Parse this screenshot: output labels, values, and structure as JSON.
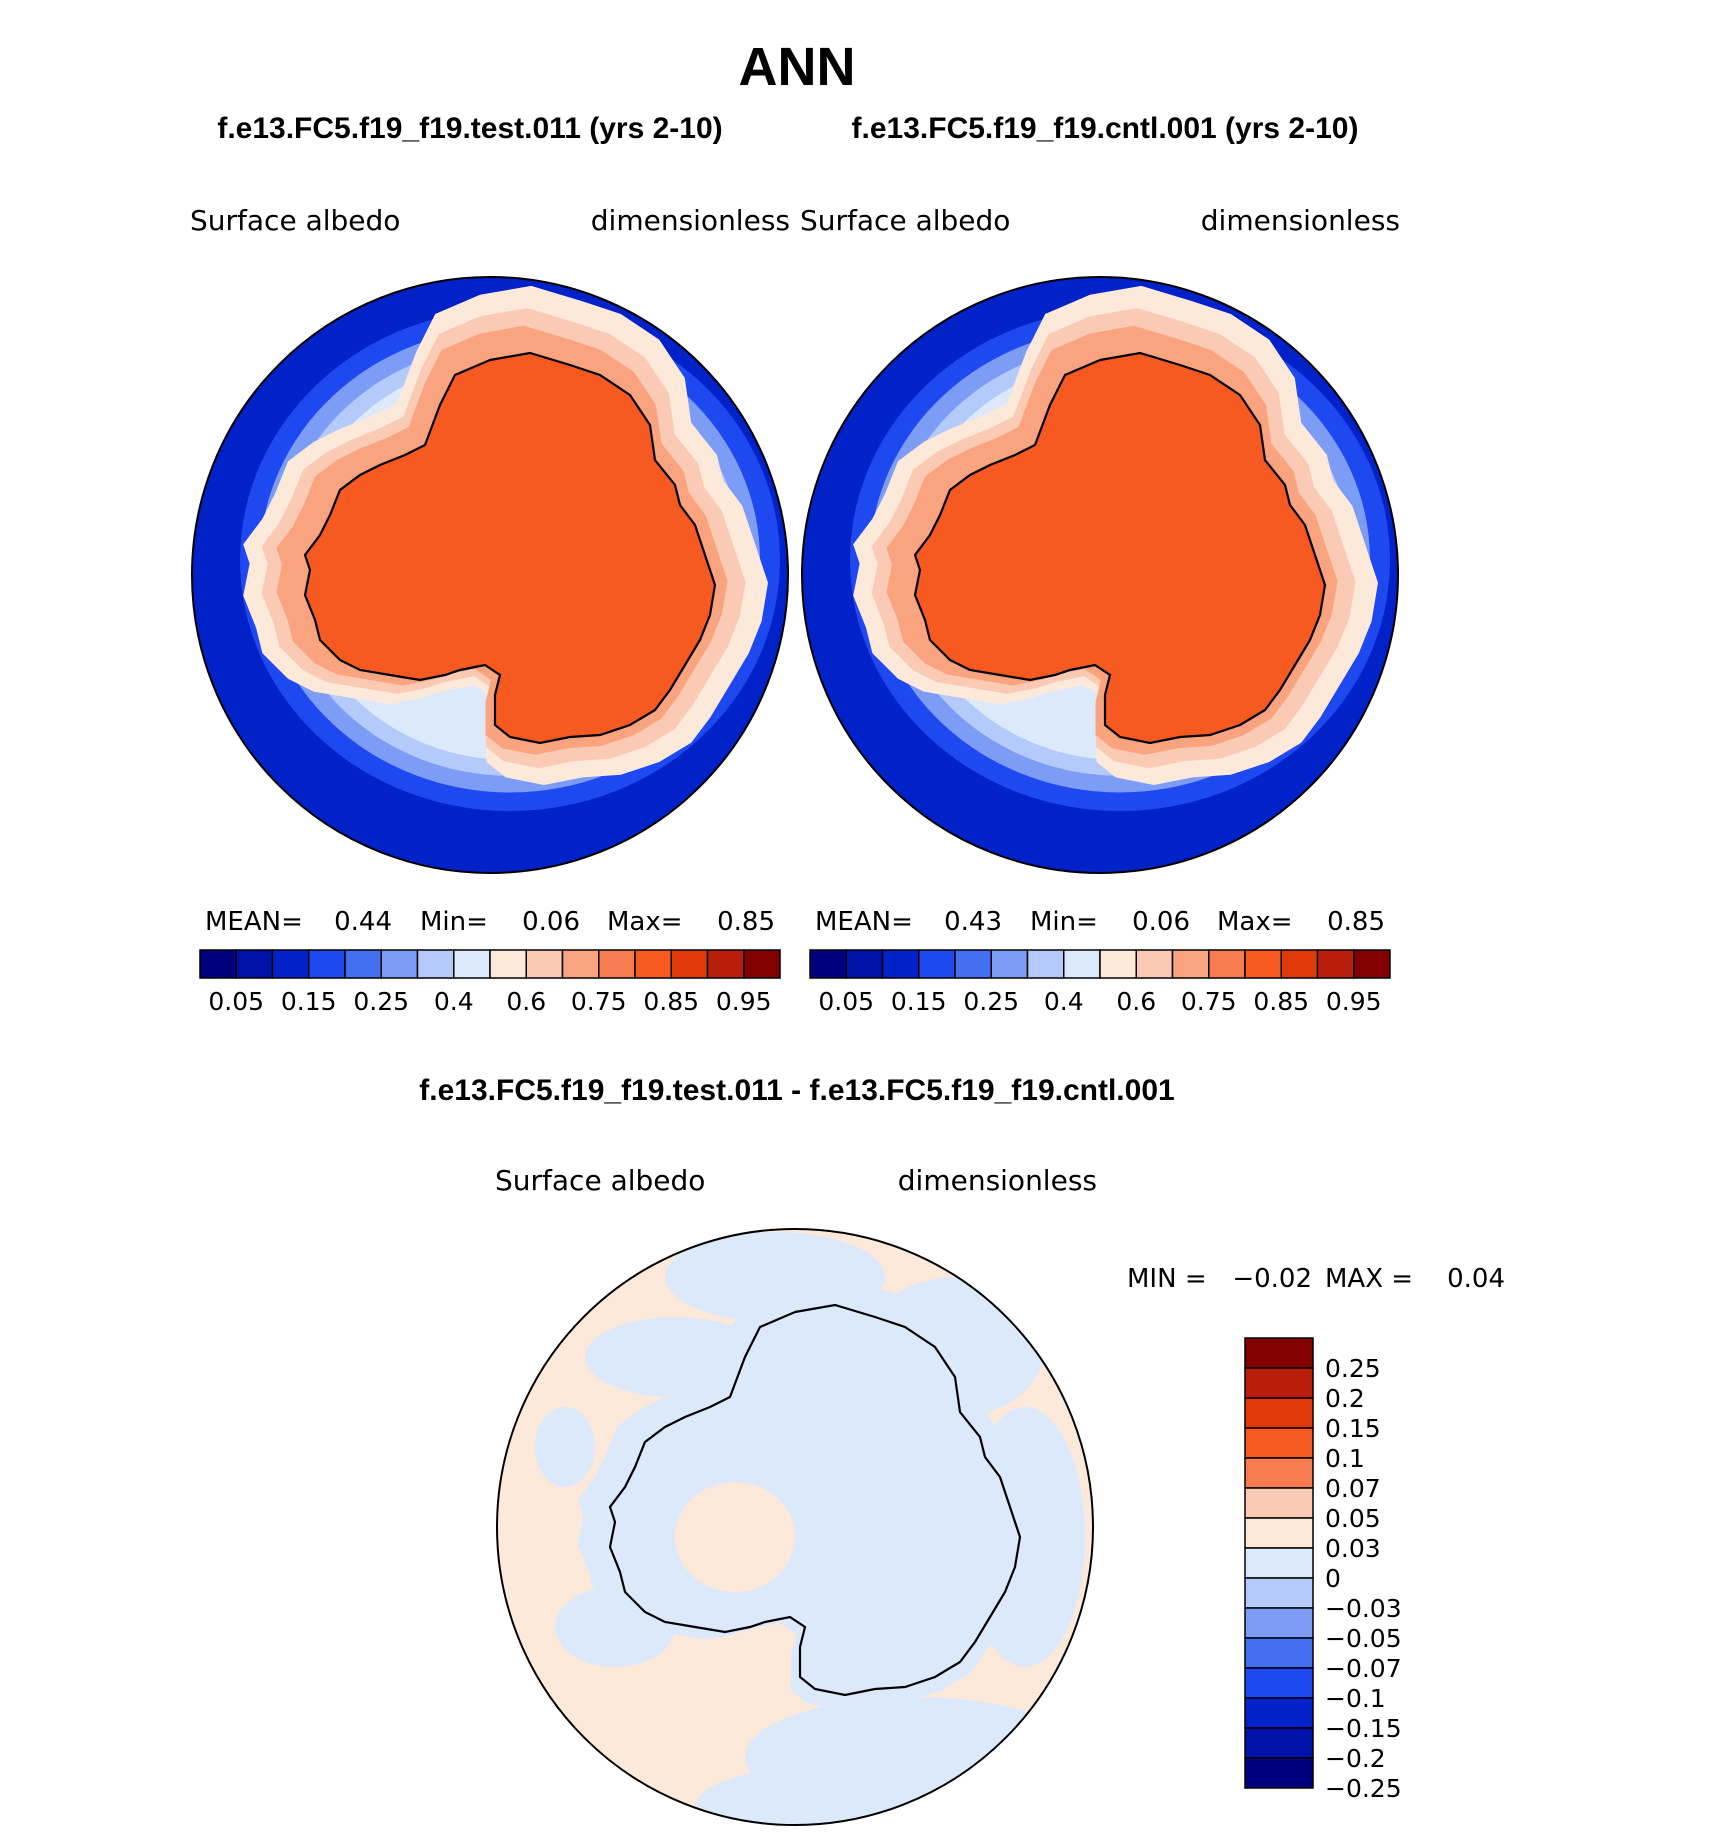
{
  "title": "ANN",
  "panels": [
    {
      "case_name": "f.e13.FC5.f19_f19.test.011 (yrs 2-10)",
      "variable": "Surface  albedo",
      "units": "dimensionless",
      "stats": {
        "mean_label": "MEAN=",
        "mean": "0.44",
        "min_label": "Min=",
        "min": "0.06",
        "max_label": "Max=",
        "max": "0.85"
      }
    },
    {
      "case_name": "f.e13.FC5.f19_f19.cntl.001 (yrs 2-10)",
      "variable": "Surface  albedo",
      "units": "dimensionless",
      "stats": {
        "mean_label": "MEAN=",
        "mean": "0.43",
        "min_label": "Min=",
        "min": "0.06",
        "max_label": "Max=",
        "max": "0.85"
      }
    }
  ],
  "field_colorbar": {
    "colors": [
      "#00007f",
      "#0012a8",
      "#0022c8",
      "#1e48f0",
      "#4470f0",
      "#7c9cf5",
      "#b3cafa",
      "#dce9fb",
      "#fde9da",
      "#fbcab4",
      "#f9a47f",
      "#f77d50",
      "#f75a20",
      "#e03a0a",
      "#b81e0a",
      "#820000"
    ],
    "labels": [
      "0.05",
      "0.15",
      "0.25",
      "0.4",
      "0.6",
      "0.75",
      "0.85",
      "0.95"
    ]
  },
  "difference": {
    "title": "f.e13.FC5.f19_f19.test.011 - f.e13.FC5.f19_f19.cntl.001",
    "variable": "Surface  albedo",
    "units": "dimensionless",
    "min_label": "MIN =",
    "min": "−0.02",
    "max_label": "MAX =",
    "max": "0.04",
    "colorbar": {
      "colors_top_to_bottom": [
        "#820000",
        "#b81e0a",
        "#e03a0a",
        "#f75a20",
        "#f77d50",
        "#fbcab4",
        "#fde9da",
        "#dce9fb",
        "#b3cafa",
        "#7c9cf5",
        "#4470f0",
        "#1e48f0",
        "#0022c8",
        "#0012a8",
        "#00007f"
      ],
      "labels_top_to_bottom": [
        "0.25",
        "0.2",
        "0.15",
        "0.1",
        "0.07",
        "0.05",
        "0.03",
        "0",
        "−0.03",
        "−0.05",
        "−0.07",
        "−0.1",
        "−0.15",
        "−0.2",
        "−0.25"
      ]
    }
  },
  "map_colors": {
    "ocean_ring": [
      "#0022c8",
      "#1e48f0",
      "#7c9cf5",
      "#b3cafa",
      "#dce9fb"
    ],
    "sea_ice": [
      "#fde9da",
      "#fbcab4",
      "#f9a47f"
    ],
    "continent": "#f75a20",
    "diff_background": "#fde9da",
    "diff_negative": "#dce9fb"
  }
}
